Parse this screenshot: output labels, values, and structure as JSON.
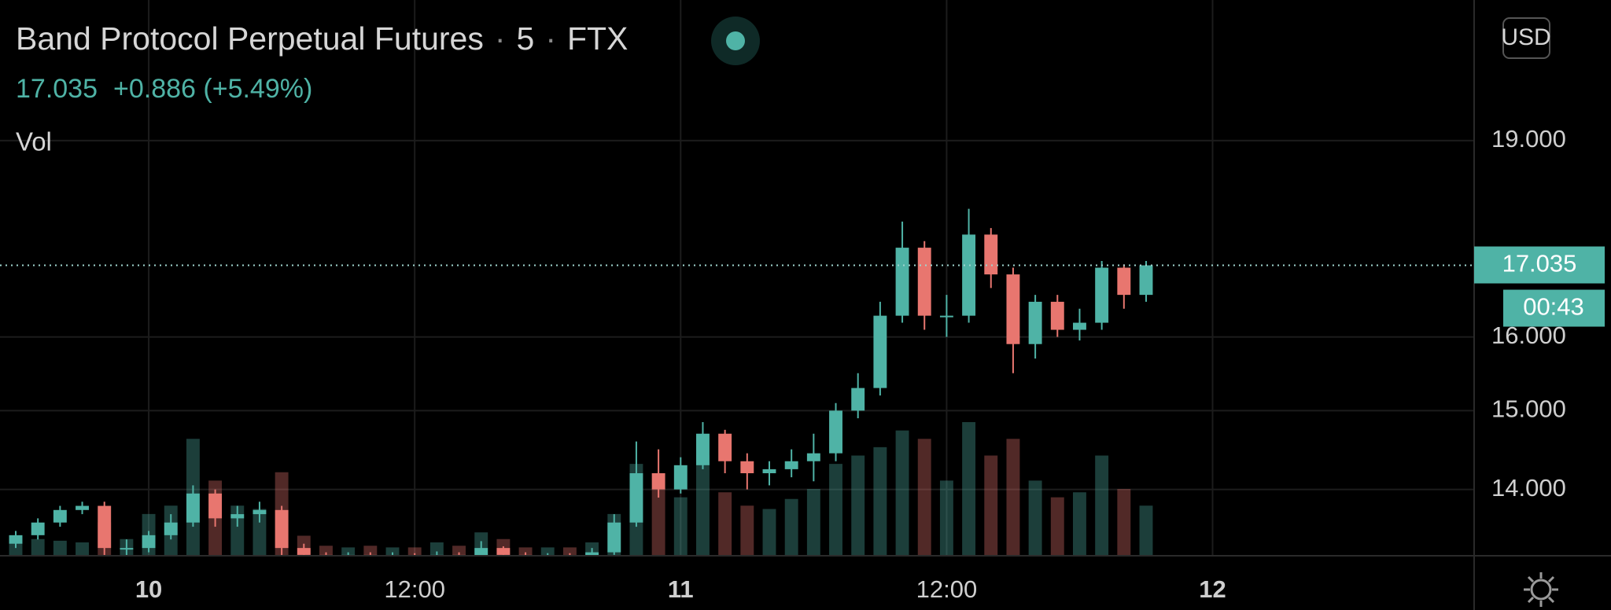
{
  "chart_data": {
    "type": "candlestick",
    "title": "Band Protocol Perpetual Futures",
    "interval": "5",
    "exchange": "FTX",
    "last_price": 17.035,
    "change": "+0.886 (+5.49%)",
    "volume_label": "Vol",
    "currency": "USD",
    "countdown": "00:43",
    "up_color": "#4fb3a6",
    "down_color": "#e8766f",
    "log_scale": true,
    "grid": true,
    "xlim": [
      -6.71,
      59.8
    ],
    "xticks": [
      {
        "value": 0,
        "label": "10"
      },
      {
        "value": 12,
        "label": "12:00"
      },
      {
        "value": 24,
        "label": "11"
      },
      {
        "value": 36,
        "label": "12:00"
      },
      {
        "value": 48,
        "label": "12"
      }
    ],
    "ylim": [
      13.21,
      21.49
    ],
    "yticks": [
      {
        "value": 14,
        "label": "14.000"
      },
      {
        "value": 15,
        "label": "15.000"
      },
      {
        "value": 16,
        "label": "16.000"
      },
      {
        "value": 19,
        "label": "19.000"
      }
    ],
    "x": [
      -6,
      -5,
      -4,
      -3,
      -2,
      -1,
      0,
      1,
      2,
      3,
      4,
      5,
      6,
      7,
      8,
      9,
      10,
      11,
      12,
      13,
      14,
      15,
      16,
      17,
      18,
      19,
      20,
      21,
      22,
      23,
      24,
      25,
      26,
      27,
      28,
      29,
      30,
      31,
      32,
      33,
      34,
      35,
      36,
      37,
      38,
      39,
      40,
      41,
      42,
      43,
      44,
      45
    ],
    "open": [
      13.35,
      13.45,
      13.6,
      13.75,
      13.8,
      13.3,
      13.3,
      13.45,
      13.6,
      13.95,
      13.65,
      13.7,
      13.75,
      13.3,
      13.22,
      13.2,
      13.22,
      13.2,
      13.21,
      13.2,
      13.22,
      13.2,
      13.3,
      13.22,
      13.2,
      13.21,
      13.2,
      13.25,
      13.6,
      14.2,
      14.0,
      14.3,
      14.7,
      14.35,
      14.2,
      14.25,
      14.35,
      14.45,
      15.0,
      15.3,
      16.3,
      17.3,
      16.3,
      16.3,
      17.5,
      16.9,
      15.9,
      16.5,
      16.1,
      16.2,
      17.0,
      16.6
    ],
    "high": [
      13.5,
      13.65,
      13.8,
      13.85,
      13.85,
      13.4,
      13.5,
      13.7,
      14.05,
      14.0,
      13.8,
      13.85,
      13.8,
      13.35,
      13.25,
      13.25,
      13.25,
      13.25,
      13.24,
      13.26,
      13.25,
      13.38,
      13.32,
      13.25,
      13.24,
      13.24,
      13.3,
      13.7,
      14.6,
      14.5,
      14.4,
      14.85,
      14.75,
      14.45,
      14.35,
      14.5,
      14.7,
      15.1,
      15.5,
      16.5,
      17.7,
      17.4,
      16.6,
      17.9,
      17.6,
      17.0,
      16.6,
      16.6,
      16.4,
      17.1,
      17.05,
      17.1
    ],
    "low": [
      13.3,
      13.4,
      13.55,
      13.7,
      13.2,
      13.2,
      13.25,
      13.4,
      13.55,
      13.55,
      13.55,
      13.6,
      13.2,
      13.2,
      13.18,
      13.18,
      13.18,
      13.18,
      13.18,
      13.18,
      13.18,
      13.18,
      13.18,
      13.18,
      13.18,
      13.18,
      13.18,
      13.22,
      13.55,
      13.9,
      13.95,
      14.25,
      14.2,
      14.0,
      14.05,
      14.15,
      14.1,
      14.35,
      14.9,
      15.2,
      16.2,
      16.1,
      16.0,
      16.2,
      16.7,
      15.5,
      15.7,
      16.0,
      15.95,
      16.1,
      16.4,
      16.5
    ],
    "close": [
      13.45,
      13.6,
      13.75,
      13.8,
      13.3,
      13.3,
      13.45,
      13.6,
      13.95,
      13.65,
      13.7,
      13.75,
      13.3,
      13.22,
      13.2,
      13.22,
      13.2,
      13.21,
      13.2,
      13.22,
      13.2,
      13.3,
      13.22,
      13.2,
      13.21,
      13.2,
      13.25,
      13.6,
      14.2,
      14.0,
      14.3,
      14.7,
      14.35,
      14.2,
      14.25,
      14.35,
      14.45,
      15.0,
      15.3,
      16.3,
      17.3,
      16.3,
      16.3,
      17.5,
      16.9,
      15.9,
      16.5,
      16.1,
      16.2,
      17.0,
      16.6,
      17.035
    ],
    "volume": [
      12,
      10,
      9,
      8,
      20,
      10,
      25,
      30,
      70,
      45,
      30,
      28,
      50,
      12,
      6,
      5,
      6,
      5,
      5,
      8,
      6,
      14,
      10,
      5,
      5,
      5,
      8,
      25,
      55,
      40,
      35,
      60,
      38,
      30,
      28,
      34,
      40,
      55,
      60,
      65,
      75,
      70,
      45,
      80,
      60,
      70,
      45,
      35,
      38,
      60,
      40,
      30
    ]
  }
}
